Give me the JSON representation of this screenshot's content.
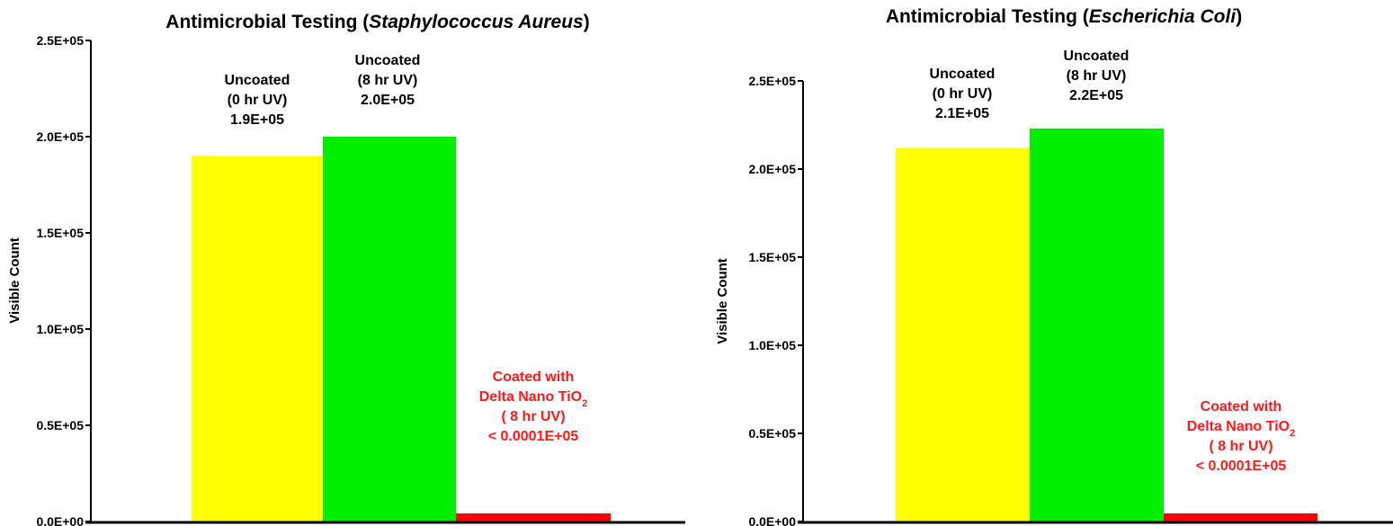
{
  "chart_data": [
    {
      "type": "bar",
      "title": "Antimicrobial Testing (Staphylococcus Aureus)",
      "title_parts": [
        {
          "text": "Antimicrobial Testing (",
          "italic": false
        },
        {
          "text": "Staphylococcus Aureus",
          "italic": true
        },
        {
          "text": ")",
          "italic": false
        }
      ],
      "ylabel": "Visible Count",
      "ylim": [
        0,
        250000
      ],
      "yticks": [
        0,
        50000,
        100000,
        150000,
        200000,
        250000
      ],
      "ytick_labels": [
        "0.0E+00",
        "0.5E+05",
        "1.0E+05",
        "1.5E+05",
        "2.0E+05",
        "2.5E+05"
      ],
      "categories": [
        "Uncoated (0 hr UV)",
        "Uncoated (8 hr UV)",
        "Coated with Delta Nano TiO2 ( 8 hr UV)"
      ],
      "values": [
        190000,
        200000,
        10
      ],
      "colors": [
        "#ffff00",
        "#00ee00",
        "#ff0000"
      ],
      "bar_labels": [
        {
          "lines": [
            "Uncoated",
            "(0 hr UV)",
            "1.9E+05"
          ],
          "color": "#000000"
        },
        {
          "lines": [
            "Uncoated",
            "(8 hr UV)",
            "2.0E+05"
          ],
          "color": "#000000"
        },
        {
          "lines": [
            "Coated with",
            "Delta Nano TiO2",
            "( 8 hr UV)",
            "< 0.0001E+05"
          ],
          "color": "#ff1a1a"
        }
      ],
      "grid": false,
      "legend": "none"
    },
    {
      "type": "bar",
      "title": "Antimicrobial Testing (Escherichia Coli)",
      "title_parts": [
        {
          "text": "Antimicrobial Testing (",
          "italic": false
        },
        {
          "text": "Escherichia Coli",
          "italic": true
        },
        {
          "text": ")",
          "italic": false
        }
      ],
      "ylabel": "Visible Count",
      "ylim": [
        0,
        250000
      ],
      "yticks": [
        0,
        50000,
        100000,
        150000,
        200000,
        250000
      ],
      "ytick_labels": [
        "0.0E+00",
        "0.5E+05",
        "1.0E+05",
        "1.5E+05",
        "2.0E+05",
        "2.5E+05"
      ],
      "categories": [
        "Uncoated (0 hr UV)",
        "Uncoated (8 hr UV)",
        "Coated with Delta Nano TiO2 ( 8 hr UV)"
      ],
      "values": [
        212000,
        223000,
        10
      ],
      "colors": [
        "#ffff00",
        "#00ee00",
        "#ff0000"
      ],
      "bar_labels": [
        {
          "lines": [
            "Uncoated",
            "(0 hr UV)",
            "2.1E+05"
          ],
          "color": "#000000"
        },
        {
          "lines": [
            "Uncoated",
            "(8 hr UV)",
            "2.2E+05"
          ],
          "color": "#000000"
        },
        {
          "lines": [
            "Coated with",
            "Delta Nano TiO2",
            "( 8 hr UV)",
            "< 0.0001E+05"
          ],
          "color": "#ff1a1a"
        }
      ],
      "grid": false,
      "legend": "none"
    }
  ]
}
